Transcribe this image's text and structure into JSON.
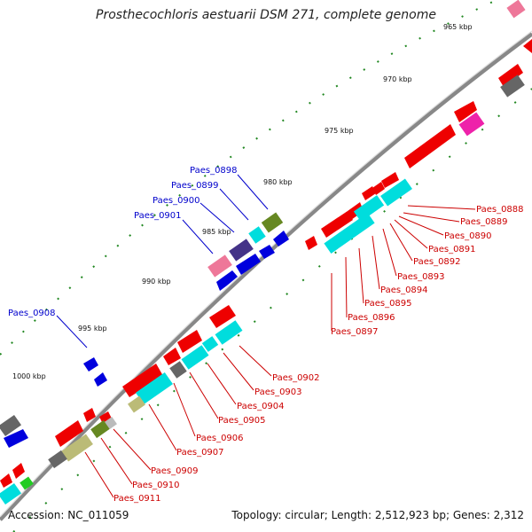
{
  "title": "Prosthecochloris aestuarii DSM 271, complete genome",
  "footer": {
    "accession": "Accession: NC_011059",
    "topology": "Topology: circular; Length: 2,512,923 bp; Genes: 2,312"
  },
  "scale_ticks": [
    "965 kbp",
    "970 kbp",
    "975 kbp",
    "980 kbp",
    "985 kbp",
    "990 kbp",
    "995 kbp",
    "1000 kbp"
  ],
  "forward_labels": [
    "Paes_0898",
    "Paes_0899",
    "Paes_0900",
    "Paes_0901",
    "Paes_0908"
  ],
  "reverse_labels_upper": [
    "Paes_0888",
    "Paes_0889",
    "Paes_0890",
    "Paes_0891",
    "Paes_0892",
    "Paes_0893",
    "Paes_0894",
    "Paes_0895",
    "Paes_0896",
    "Paes_0897"
  ],
  "reverse_labels_lower": [
    "Paes_0902",
    "Paes_0903",
    "Paes_0904",
    "Paes_0905",
    "Paes_0906",
    "Paes_0907",
    "Paes_0909",
    "Paes_0910",
    "Paes_0911"
  ],
  "colors": {
    "backbone": "#888888",
    "forward_cds": "#0000dd",
    "reverse_cds": "#ee0000",
    "cyan_feature": "#00dddd",
    "pink_feature": "#ee7799",
    "magenta_feature": "#ee22aa",
    "olive_feature": "#668822",
    "tan_feature": "#bbbb77",
    "navy_feature": "#443388",
    "gray_feature": "#666666",
    "green_feature": "#22cc22",
    "tick_green": "#228822",
    "label_red": "#cc0000",
    "label_blue": "#0000cc"
  }
}
